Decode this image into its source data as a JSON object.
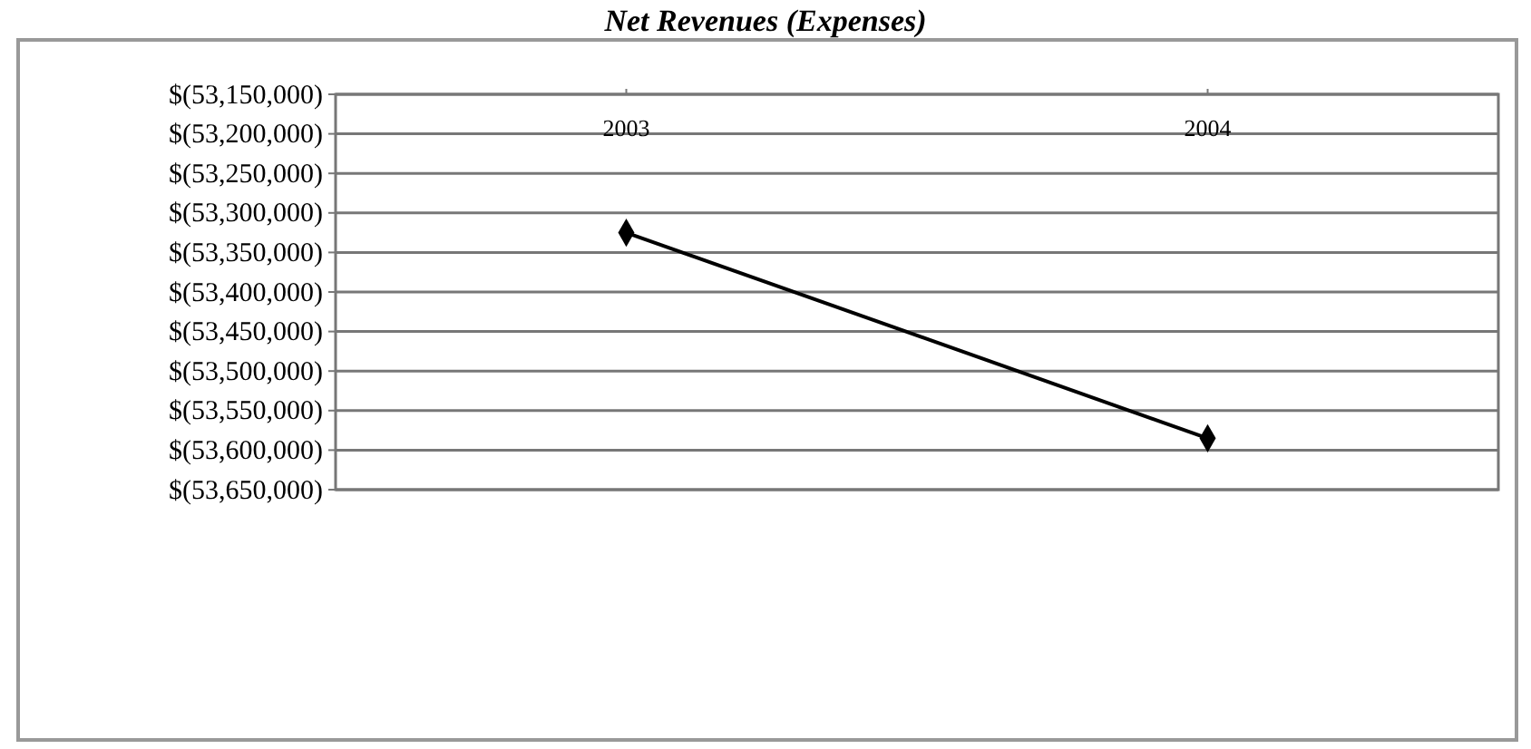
{
  "chart_data": {
    "type": "line",
    "title": "Net Revenues (Expenses)",
    "categories": [
      "2003",
      "2004"
    ],
    "series": [
      {
        "color": "#000000",
        "values": [
          -53325000,
          -53585000
        ]
      }
    ],
    "ylim": [
      -53650000,
      -53150000
    ],
    "yticks": [
      {
        "value": -53150000,
        "label": "$(53,150,000)"
      },
      {
        "value": -53200000,
        "label": "$(53,200,000)"
      },
      {
        "value": -53250000,
        "label": "$(53,250,000)"
      },
      {
        "value": -53300000,
        "label": "$(53,300,000)"
      },
      {
        "value": -53350000,
        "label": "$(53,350,000)"
      },
      {
        "value": -53400000,
        "label": "$(53,400,000)"
      },
      {
        "value": -53450000,
        "label": "$(53,450,000)"
      },
      {
        "value": -53500000,
        "label": "$(53,500,000)"
      },
      {
        "value": -53550000,
        "label": "$(53,550,000)"
      },
      {
        "value": -53600000,
        "label": "$(53,600,000)"
      },
      {
        "value": -53650000,
        "label": "$(53,650,000)"
      }
    ],
    "grid": "y",
    "marker": "diamond",
    "line_style": "solid"
  }
}
